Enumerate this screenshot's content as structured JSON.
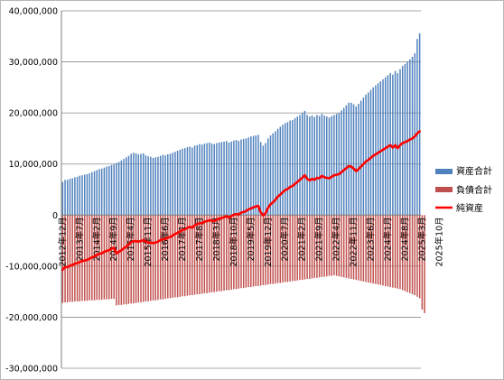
{
  "chart_data": {
    "type": "bar",
    "title": "",
    "xlabel": "",
    "ylabel": "",
    "ylim": [
      -30000000,
      40000000
    ],
    "yticks": [
      "40,000,000",
      "30,000,000",
      "20,000,000",
      "10,000,000",
      "0",
      "-10,000,000",
      "-20,000,000",
      "-30,000,000"
    ],
    "ytick_values": [
      40000000,
      30000000,
      20000000,
      10000000,
      0,
      -10000000,
      -20000000,
      -30000000
    ],
    "grid": true,
    "legend": "right",
    "x_tick_labels": [
      "2012年12月",
      "2013年7月",
      "2014年2月",
      "2014年9月",
      "2015年4月",
      "2015年11月",
      "2016年6月",
      "2017年1月",
      "2017年8月",
      "2018年3月",
      "2018年10月",
      "2019年5月",
      "2019年12月",
      "2020年7月",
      "2021年2月",
      "2021年9月",
      "2022年4月",
      "2022年11月",
      "2023年6月",
      "2024年1月",
      "2024年8月",
      "2025年3月",
      "2025年10月"
    ],
    "x_tick_every_months": 7,
    "start_month": "2012年12月",
    "series": [
      {
        "name": "資産合計",
        "type": "bar",
        "color": "#4f81bd",
        "values": [
          6.5,
          6.9,
          6.9,
          7.1,
          7.2,
          7.4,
          7.5,
          7.7,
          7.8,
          7.9,
          8.0,
          8.2,
          8.4,
          8.6,
          8.8,
          9.0,
          9.1,
          9.3,
          9.5,
          9.6,
          9.8,
          10.0,
          10.2,
          10.4,
          10.7,
          11.0,
          11.3,
          11.6,
          12.0,
          12.2,
          12.1,
          11.9,
          12.0,
          12.1,
          11.7,
          11.5,
          11.4,
          11.2,
          11.3,
          11.4,
          11.6,
          11.8,
          11.7,
          11.9,
          12.0,
          12.2,
          12.4,
          12.6,
          12.8,
          13.0,
          13.1,
          13.3,
          13.4,
          13.2,
          13.6,
          13.7,
          13.9,
          13.8,
          14.0,
          14.1,
          14.2,
          14.0,
          13.9,
          14.1,
          14.2,
          14.3,
          14.4,
          14.5,
          14.2,
          14.4,
          14.6,
          14.7,
          14.5,
          14.8,
          14.9,
          15.0,
          15.2,
          15.4,
          15.5,
          15.6,
          15.7,
          14.3,
          13.6,
          14.1,
          15.0,
          15.6,
          16.0,
          16.4,
          16.9,
          17.3,
          17.7,
          18.0,
          18.2,
          18.5,
          18.6,
          19.0,
          19.3,
          19.6,
          20.0,
          20.4,
          19.6,
          19.3,
          19.5,
          19.2,
          19.6,
          19.4,
          19.8,
          19.5,
          19.3,
          19.1,
          19.4,
          19.6,
          19.8,
          20.0,
          20.5,
          21.0,
          21.5,
          22.0,
          22.0,
          21.7,
          21.3,
          21.8,
          22.4,
          23.0,
          23.6,
          24.0,
          24.5,
          25.0,
          25.4,
          25.8,
          26.2,
          26.6,
          27.0,
          27.4,
          27.8,
          27.5,
          28.2,
          27.8,
          28.6,
          29.2,
          29.6,
          30.0,
          30.5,
          31.0,
          31.7,
          34.5,
          35.6
        ]
      },
      {
        "name": "負債合計",
        "type": "bar",
        "color": "#c0504d",
        "values": [
          -17.2,
          -17.1,
          -17.1,
          -17.0,
          -17.0,
          -16.9,
          -16.9,
          -16.9,
          -16.8,
          -16.8,
          -16.8,
          -16.7,
          -16.7,
          -16.7,
          -16.6,
          -16.6,
          -16.6,
          -16.5,
          -16.5,
          -16.5,
          -16.4,
          -16.4,
          -17.7,
          -17.6,
          -17.6,
          -17.5,
          -17.5,
          -17.4,
          -17.3,
          -17.3,
          -17.2,
          -17.1,
          -17.1,
          -17.0,
          -16.9,
          -16.9,
          -16.8,
          -16.7,
          -16.7,
          -16.6,
          -16.5,
          -16.5,
          -16.4,
          -16.3,
          -16.3,
          -16.2,
          -16.1,
          -16.1,
          -16.0,
          -15.9,
          -15.9,
          -15.8,
          -15.7,
          -15.7,
          -15.6,
          -15.5,
          -15.5,
          -15.4,
          -15.3,
          -15.3,
          -15.2,
          -15.1,
          -15.1,
          -15.0,
          -14.9,
          -14.9,
          -14.8,
          -14.7,
          -14.7,
          -14.6,
          -14.5,
          -14.5,
          -14.4,
          -14.3,
          -14.3,
          -14.2,
          -14.1,
          -14.1,
          -14.0,
          -13.9,
          -13.9,
          -13.8,
          -13.7,
          -13.7,
          -13.6,
          -13.5,
          -13.5,
          -13.4,
          -13.3,
          -13.3,
          -13.2,
          -13.1,
          -13.1,
          -13.0,
          -12.9,
          -12.9,
          -12.8,
          -12.7,
          -12.7,
          -12.6,
          -12.5,
          -12.5,
          -12.4,
          -12.3,
          -12.3,
          -12.2,
          -12.1,
          -12.1,
          -12.0,
          -11.9,
          -11.9,
          -11.8,
          -11.9,
          -12.0,
          -12.1,
          -12.2,
          -12.3,
          -12.4,
          -12.5,
          -12.6,
          -12.7,
          -12.8,
          -12.9,
          -13.0,
          -13.1,
          -13.2,
          -13.3,
          -13.4,
          -13.5,
          -13.6,
          -13.7,
          -13.8,
          -13.9,
          -14.0,
          -14.1,
          -14.2,
          -14.3,
          -14.4,
          -14.5,
          -14.7,
          -14.9,
          -15.1,
          -15.3,
          -15.5,
          -15.7,
          -16.0,
          -16.3,
          -18.5,
          -19.2
        ]
      },
      {
        "name": "純資産",
        "type": "line",
        "color": "#ff0000",
        "values": [
          -10.7,
          -10.2,
          -10.2,
          -9.9,
          -9.8,
          -9.5,
          -9.4,
          -9.2,
          -9.0,
          -8.9,
          -8.8,
          -8.5,
          -8.3,
          -8.1,
          -7.8,
          -7.6,
          -7.5,
          -7.2,
          -7.0,
          -6.9,
          -6.6,
          -6.4,
          -7.5,
          -7.2,
          -6.9,
          -6.5,
          -6.2,
          -5.8,
          -5.3,
          -5.1,
          -5.1,
          -5.2,
          -5.1,
          -4.9,
          -5.2,
          -5.4,
          -5.4,
          -5.5,
          -5.4,
          -5.2,
          -4.9,
          -4.7,
          -4.7,
          -4.4,
          -4.3,
          -4.0,
          -3.7,
          -3.5,
          -3.2,
          -2.9,
          -2.8,
          -2.5,
          -2.3,
          -2.5,
          -2.0,
          -1.8,
          -1.6,
          -1.6,
          -1.3,
          -1.2,
          -1.0,
          -1.1,
          -1.2,
          -0.9,
          -0.7,
          -0.6,
          -0.4,
          -0.2,
          -0.5,
          -0.2,
          0.1,
          0.2,
          0.1,
          0.5,
          0.6,
          0.8,
          1.1,
          1.3,
          1.5,
          1.7,
          1.8,
          0.5,
          -0.1,
          0.4,
          1.4,
          2.1,
          2.5,
          3.0,
          3.6,
          4.0,
          4.5,
          4.9,
          5.1,
          5.5,
          5.7,
          6.1,
          6.5,
          6.9,
          7.3,
          7.8,
          7.1,
          6.8,
          7.1,
          6.9,
          7.3,
          7.2,
          7.7,
          7.4,
          7.3,
          7.2,
          7.5,
          7.8,
          7.9,
          8.0,
          8.4,
          8.8,
          9.2,
          9.6,
          9.5,
          9.1,
          8.6,
          9.0,
          9.5,
          10.0,
          10.5,
          10.8,
          11.2,
          11.6,
          11.9,
          12.2,
          12.5,
          12.8,
          13.1,
          13.4,
          13.7,
          13.2,
          13.7,
          13.1,
          13.7,
          14.1,
          14.3,
          14.5,
          14.8,
          15.0,
          15.4,
          16.0,
          16.4
        ]
      }
    ]
  }
}
